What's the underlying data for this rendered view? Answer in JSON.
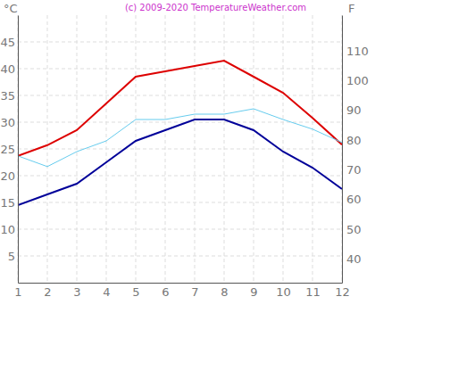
{
  "chart_data": {
    "type": "line",
    "title": "(c) 2009-2020 TemperatureWeather.com",
    "ylabel": "°C",
    "y2label": "F",
    "x": [
      1,
      2,
      3,
      4,
      5,
      6,
      7,
      8,
      9,
      10,
      11,
      12
    ],
    "xlim": [
      1,
      12
    ],
    "xticks": [
      1,
      2,
      3,
      4,
      5,
      6,
      7,
      8,
      9,
      10,
      11,
      12
    ],
    "ylim": [
      0,
      50
    ],
    "yticks": [
      5,
      10,
      15,
      20,
      25,
      30,
      35,
      40,
      45
    ],
    "y2lim": [
      32,
      122
    ],
    "y2ticks": [
      40,
      50,
      60,
      70,
      80,
      90,
      100,
      110
    ],
    "grid": true,
    "series": [
      {
        "color": "#dd0000",
        "values": [
          23.7,
          25.7,
          28.5,
          33.5,
          38.5,
          39.5,
          40.5,
          41.5,
          38.5,
          35.5,
          30.8,
          25.8
        ]
      },
      {
        "color": "#66ccee",
        "values": [
          23.7,
          21.7,
          24.5,
          26.5,
          30.5,
          30.5,
          31.5,
          31.5,
          32.5,
          30.5,
          28.7,
          26.2
        ]
      },
      {
        "color": "#000099",
        "values": [
          14.5,
          16.5,
          18.5,
          22.5,
          26.5,
          28.5,
          30.5,
          30.5,
          28.5,
          24.5,
          21.5,
          17.5
        ]
      }
    ]
  }
}
